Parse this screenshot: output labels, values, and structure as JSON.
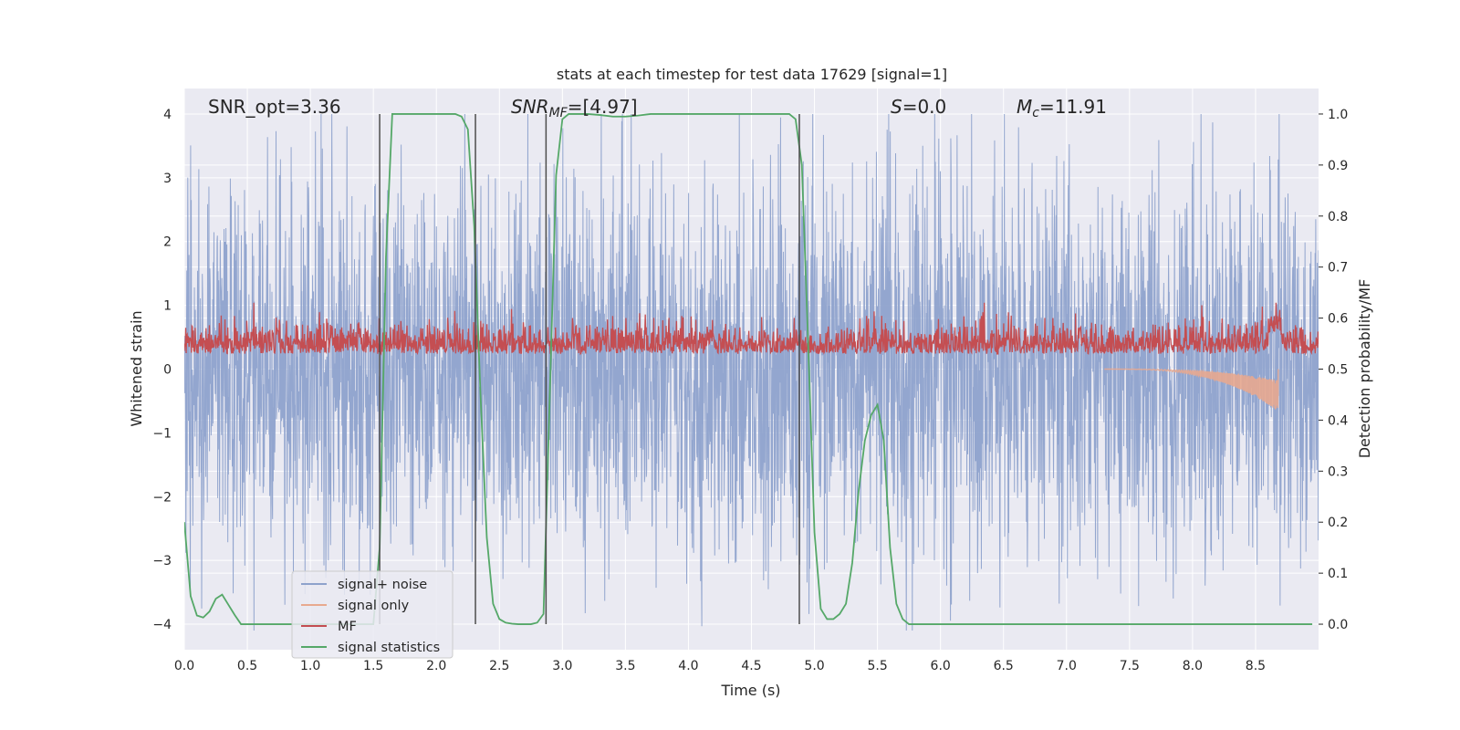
{
  "chart_data": {
    "type": "line",
    "title": "stats at each timestep for test data 17629 [signal=1]",
    "xlabel": "Time (s)",
    "ylabel_left": "Whitened strain",
    "ylabel_right": "Detection probability/MF",
    "xlim": [
      0.0,
      9.0
    ],
    "ylim_left": [
      -4.4,
      4.4
    ],
    "ylim_right": [
      -0.05,
      1.05
    ],
    "xticks": [
      "0.0",
      "0.5",
      "1.0",
      "1.5",
      "2.0",
      "2.5",
      "3.0",
      "3.5",
      "4.0",
      "4.5",
      "5.0",
      "5.5",
      "6.0",
      "6.5",
      "7.0",
      "7.5",
      "8.0",
      "8.5"
    ],
    "yticks_left": [
      "4",
      "3",
      "2",
      "1",
      "0",
      "−1",
      "−2",
      "−3",
      "−4"
    ],
    "yticks_right": [
      "1.0",
      "0.9",
      "0.8",
      "0.7",
      "0.6",
      "0.5",
      "0.4",
      "0.3",
      "0.2",
      "0.1",
      "0.0"
    ],
    "grid": true,
    "legend_position": "lower-left",
    "annotations": {
      "snr_opt": "SNR_opt=3.36",
      "snr_mf_main": "SNR",
      "snr_mf_sub": "MF",
      "snr_mf_value": "=[4.97]",
      "s_main": "S",
      "s_value": "=0.0",
      "mc_main": "M",
      "mc_sub": "c",
      "mc_value": "=11.91"
    },
    "vertical_markers": [
      1.55,
      2.31,
      2.87,
      4.88
    ],
    "series": [
      {
        "name": "signal+ noise",
        "color": "#8ea2cc",
        "description_values": "noise-like whitened strain, amplitude approx ±2.5 with peaks to ±4, over t in [0, 9]"
      },
      {
        "name": "signal only",
        "color": "#e8a98f",
        "chirp": {
          "start": 7.3,
          "end": 8.68,
          "final_amplitude": -0.7
        }
      },
      {
        "name": "MF",
        "color": "#c44e52",
        "baseline": 0.53,
        "amplitude_range": [
          0.5,
          0.62
        ]
      },
      {
        "name": "signal statistics",
        "color": "#55a868",
        "x": [
          0.0,
          0.05,
          0.1,
          0.15,
          0.2,
          0.25,
          0.3,
          0.35,
          0.4,
          0.45,
          0.5,
          0.6,
          0.7,
          0.8,
          0.9,
          1.0,
          1.1,
          1.2,
          1.3,
          1.4,
          1.5,
          1.55,
          1.6,
          1.65,
          1.7,
          1.8,
          1.9,
          2.0,
          2.1,
          2.15,
          2.2,
          2.25,
          2.3,
          2.35,
          2.4,
          2.45,
          2.5,
          2.55,
          2.6,
          2.65,
          2.7,
          2.75,
          2.8,
          2.85,
          2.9,
          2.95,
          3.0,
          3.05,
          3.1,
          3.2,
          3.3,
          3.4,
          3.5,
          3.6,
          3.7,
          3.8,
          3.9,
          4.0,
          4.1,
          4.2,
          4.3,
          4.4,
          4.5,
          4.6,
          4.7,
          4.75,
          4.8,
          4.85,
          4.9,
          4.95,
          5.0,
          5.05,
          5.1,
          5.15,
          5.2,
          5.25,
          5.3,
          5.35,
          5.4,
          5.45,
          5.5,
          5.55,
          5.6,
          5.65,
          5.7,
          5.75,
          5.8,
          6.0,
          6.5,
          7.0,
          7.5,
          8.0,
          8.5,
          8.95
        ],
        "values": [
          0.2,
          0.055,
          0.017,
          0.013,
          0.025,
          0.05,
          0.058,
          0.038,
          0.018,
          0.0,
          0.0,
          0.0,
          0.0,
          0.0,
          0.0,
          0.0,
          0.0,
          0.0,
          0.0,
          0.0,
          0.0,
          0.15,
          0.72,
          1.0,
          1.0,
          1.0,
          1.0,
          1.0,
          1.0,
          1.0,
          0.995,
          0.97,
          0.78,
          0.45,
          0.17,
          0.04,
          0.01,
          0.003,
          0.001,
          0.0,
          0.0,
          0.0,
          0.003,
          0.02,
          0.45,
          0.88,
          0.99,
          1.0,
          1.0,
          1.0,
          0.998,
          0.995,
          0.995,
          0.997,
          1.0,
          1.0,
          1.0,
          1.0,
          1.0,
          1.0,
          1.0,
          1.0,
          1.0,
          1.0,
          1.0,
          1.0,
          1.0,
          0.99,
          0.9,
          0.55,
          0.18,
          0.03,
          0.01,
          0.01,
          0.02,
          0.04,
          0.12,
          0.26,
          0.36,
          0.41,
          0.43,
          0.36,
          0.15,
          0.04,
          0.01,
          0.0,
          0.0,
          0.0,
          0.0,
          0.0,
          0.0,
          0.0,
          0.0,
          0.0
        ]
      }
    ],
    "legend": [
      "signal+ noise",
      "signal only",
      "MF",
      "signal statistics"
    ]
  }
}
